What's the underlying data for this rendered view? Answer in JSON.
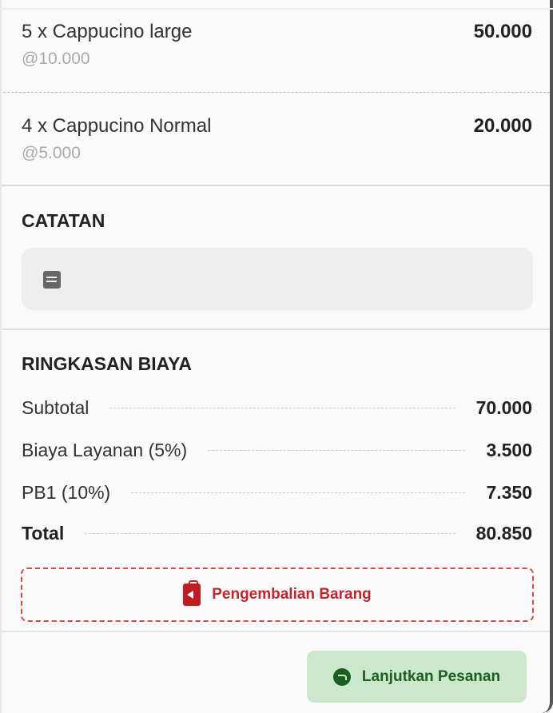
{
  "items": [
    {
      "name": "5 x Cappucino large",
      "unit_price": "@10.000",
      "amount": "50.000"
    },
    {
      "name": "4 x Cappucino Normal",
      "unit_price": "@5.000",
      "amount": "20.000"
    }
  ],
  "notes": {
    "heading": "CATATAN",
    "icon": "note-icon"
  },
  "summary": {
    "heading": "RINGKASAN BIAYA",
    "rows": [
      {
        "label": "Subtotal",
        "value": "70.000"
      },
      {
        "label": "Biaya Layanan (5%)",
        "value": "3.500"
      },
      {
        "label": "PB1 (10%)",
        "value": "7.350"
      },
      {
        "label": "Total",
        "value": "80.850"
      }
    ]
  },
  "actions": {
    "return_label": "Pengembalian Barang",
    "continue_label": "Lanjutkan Pesanan"
  },
  "colors": {
    "return": "#c0262d",
    "continue_bg": "#cbe8cc",
    "continue_text": "#1b5e20"
  }
}
